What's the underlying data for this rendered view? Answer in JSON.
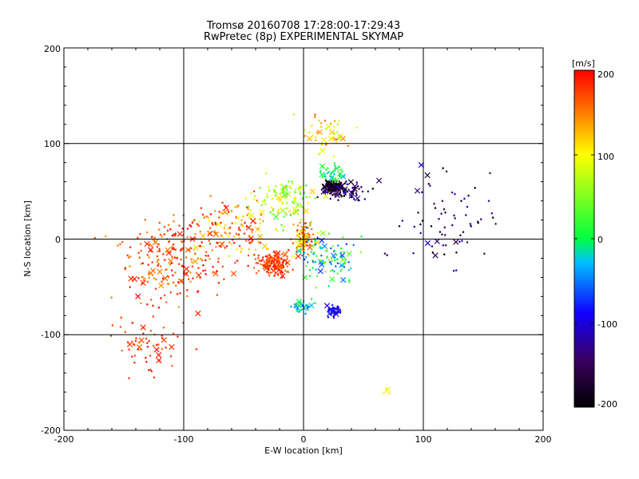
{
  "chart_data": {
    "type": "scatter",
    "title": "Tromsø 20160708 17:28:00-17:29:43",
    "subtitle": "RwPretec (8p) EXPERIMENTAL SKYMAP",
    "xlabel": "E-W location [km]",
    "ylabel": "N-S location [km]",
    "xlim": [
      -200,
      200
    ],
    "ylim": [
      -200,
      200
    ],
    "xticks": [
      "-200",
      "-100",
      "0",
      "100",
      "200"
    ],
    "yticks": [
      "-200",
      "-100",
      "0",
      "100",
      "200"
    ],
    "grid": true,
    "colorbar": {
      "label": "[m/s]",
      "range": [
        -200,
        200
      ],
      "ticks": [
        "200",
        "100",
        "0",
        "-100",
        "-200"
      ],
      "colormap": [
        "#000000",
        "#3a0060",
        "#1000ff",
        "#00c0ff",
        "#00ff40",
        "#ffff00",
        "#ff8000",
        "#ff0000"
      ]
    },
    "clusters": [
      {
        "cx": -110,
        "cy": -20,
        "sx": 45,
        "sy": 50,
        "n": 220,
        "vmin": 140,
        "vmax": 200
      },
      {
        "cx": -25,
        "cy": -25,
        "sx": 15,
        "sy": 12,
        "n": 160,
        "vmin": 150,
        "vmax": 200
      },
      {
        "cx": -60,
        "cy": 10,
        "sx": 35,
        "sy": 35,
        "n": 140,
        "vmin": 100,
        "vmax": 200
      },
      {
        "cx": -130,
        "cy": -110,
        "sx": 30,
        "sy": 30,
        "n": 60,
        "vmin": 160,
        "vmax": 200
      },
      {
        "cx": -15,
        "cy": 40,
        "sx": 25,
        "sy": 25,
        "n": 120,
        "vmin": 20,
        "vmax": 120
      },
      {
        "cx": 0,
        "cy": 0,
        "sx": 10,
        "sy": 18,
        "n": 90,
        "vmin": 90,
        "vmax": 190
      },
      {
        "cx": 25,
        "cy": 55,
        "sx": 8,
        "sy": 7,
        "n": 140,
        "vmin": -200,
        "vmax": -150
      },
      {
        "cx": 35,
        "cy": 50,
        "sx": 20,
        "sy": 12,
        "n": 70,
        "vmin": -200,
        "vmax": -110
      },
      {
        "cx": 25,
        "cy": 70,
        "sx": 12,
        "sy": 10,
        "n": 40,
        "vmin": -40,
        "vmax": 30
      },
      {
        "cx": 20,
        "cy": -20,
        "sx": 25,
        "sy": 25,
        "n": 110,
        "vmin": -80,
        "vmax": 60
      },
      {
        "cx": 0,
        "cy": -70,
        "sx": 8,
        "sy": 7,
        "n": 40,
        "vmin": -60,
        "vmax": 10
      },
      {
        "cx": 25,
        "cy": -75,
        "sx": 6,
        "sy": 6,
        "n": 40,
        "vmin": -130,
        "vmax": -70
      },
      {
        "cx": 20,
        "cy": 110,
        "sx": 25,
        "sy": 20,
        "n": 50,
        "vmin": 60,
        "vmax": 170
      },
      {
        "cx": 120,
        "cy": 20,
        "sx": 40,
        "sy": 55,
        "n": 70,
        "vmin": -200,
        "vmax": -100
      },
      {
        "cx": 70,
        "cy": -160,
        "sx": 4,
        "sy": 6,
        "n": 5,
        "vmin": 100,
        "vmax": 120
      }
    ]
  }
}
